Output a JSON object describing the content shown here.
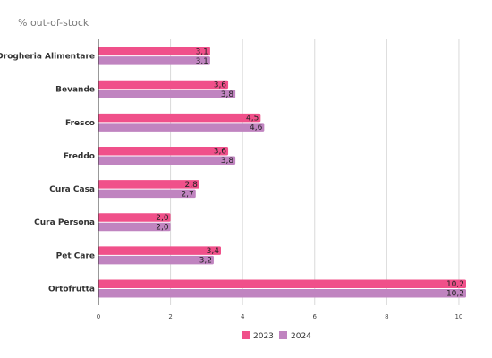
{
  "chart_data": {
    "type": "bar",
    "orientation": "horizontal",
    "subtitle": "% out-of-stock",
    "categories": [
      "Drogheria Alimentare",
      "Bevande",
      "Fresco",
      "Freddo",
      "Cura Casa",
      "Cura Persona",
      "Pet Care",
      "Ortofrutta"
    ],
    "series": [
      {
        "name": "2023",
        "color": "#f0508a",
        "values": [
          3.1,
          3.6,
          4.5,
          3.6,
          2.8,
          2.0,
          3.4,
          10.2
        ],
        "labels": [
          "3,1",
          "3,6",
          "4,5",
          "3,6",
          "2,8",
          "2,0",
          "3,4",
          "10,2"
        ]
      },
      {
        "name": "2024",
        "color": "#c084c0",
        "values": [
          3.1,
          3.8,
          4.6,
          3.8,
          2.7,
          2.0,
          3.2,
          10.2
        ],
        "labels": [
          "3,1",
          "3,8",
          "4,6",
          "3,8",
          "2,7",
          "2,0",
          "3,2",
          "10,2"
        ]
      }
    ],
    "xlim": [
      0,
      10.2
    ],
    "xticks": [
      0,
      2,
      4,
      6,
      8,
      10
    ],
    "grid": true,
    "legend_position": "bottom"
  }
}
